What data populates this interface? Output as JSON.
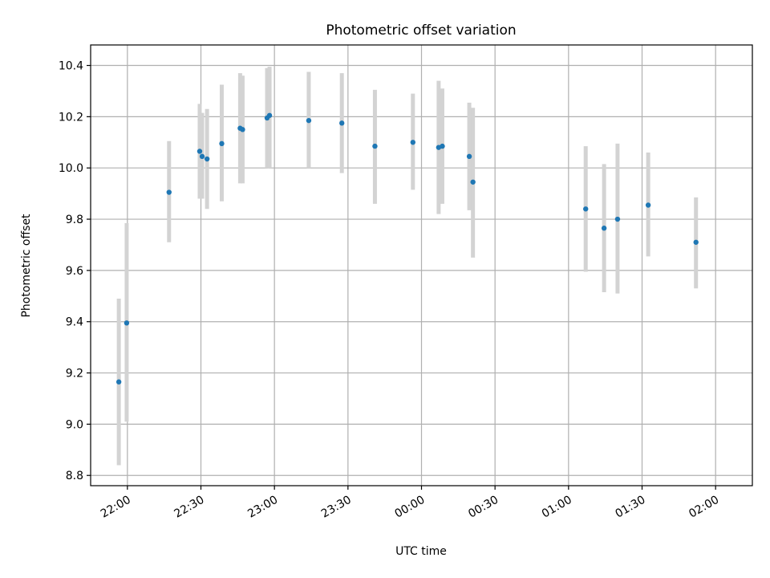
{
  "chart_data": {
    "type": "scatter",
    "title": "Photometric offset variation",
    "xlabel": "UTC time",
    "ylabel": "Photometric offset",
    "grid": true,
    "xaxis_start_time": "21:45",
    "xlim_minutes": [
      -15,
      255
    ],
    "ylim": [
      8.76,
      10.48
    ],
    "x_ticks": [
      {
        "label": "22:00",
        "minutes": 0
      },
      {
        "label": "22:30",
        "minutes": 30
      },
      {
        "label": "23:00",
        "minutes": 60
      },
      {
        "label": "23:30",
        "minutes": 90
      },
      {
        "label": "00:00",
        "minutes": 120
      },
      {
        "label": "00:30",
        "minutes": 150
      },
      {
        "label": "01:00",
        "minutes": 180
      },
      {
        "label": "01:30",
        "minutes": 210
      },
      {
        "label": "02:00",
        "minutes": 240
      }
    ],
    "y_ticks": [
      "8.8",
      "9.0",
      "9.2",
      "9.4",
      "9.6",
      "9.8",
      "10.0",
      "10.2",
      "10.4"
    ],
    "colors": {
      "point": "#1f77b4",
      "errorbar": "#d3d3d3",
      "grid": "#b0b0b0"
    },
    "series": [
      {
        "points": [
          {
            "x_min": -3.5,
            "y": 9.165,
            "lo": 8.84,
            "hi": 9.49
          },
          {
            "x_min": -0.3,
            "y": 9.395,
            "lo": 9.01,
            "hi": 9.785
          },
          {
            "x_min": 17.0,
            "y": 9.905,
            "lo": 9.71,
            "hi": 10.105
          },
          {
            "x_min": 29.5,
            "y": 10.065,
            "lo": 9.88,
            "hi": 10.25
          },
          {
            "x_min": 30.5,
            "y": 10.045,
            "lo": 9.88,
            "hi": 10.215
          },
          {
            "x_min": 32.5,
            "y": 10.035,
            "lo": 9.84,
            "hi": 10.23
          },
          {
            "x_min": 38.5,
            "y": 10.095,
            "lo": 9.87,
            "hi": 10.325
          },
          {
            "x_min": 46.0,
            "y": 10.155,
            "lo": 9.94,
            "hi": 10.37
          },
          {
            "x_min": 47.0,
            "y": 10.15,
            "lo": 9.94,
            "hi": 10.36
          },
          {
            "x_min": 57.0,
            "y": 10.195,
            "lo": 10.0,
            "hi": 10.39
          },
          {
            "x_min": 58.0,
            "y": 10.205,
            "lo": 10.0,
            "hi": 10.395
          },
          {
            "x_min": 74.0,
            "y": 10.185,
            "lo": 10.0,
            "hi": 10.375
          },
          {
            "x_min": 87.5,
            "y": 10.175,
            "lo": 9.98,
            "hi": 10.37
          },
          {
            "x_min": 101.0,
            "y": 10.085,
            "lo": 9.86,
            "hi": 10.305
          },
          {
            "x_min": 116.5,
            "y": 10.1,
            "lo": 9.915,
            "hi": 10.29
          },
          {
            "x_min": 127.0,
            "y": 10.08,
            "lo": 9.82,
            "hi": 10.34
          },
          {
            "x_min": 128.5,
            "y": 10.085,
            "lo": 9.86,
            "hi": 10.31
          },
          {
            "x_min": 139.5,
            "y": 10.045,
            "lo": 9.835,
            "hi": 10.255
          },
          {
            "x_min": 141.0,
            "y": 9.945,
            "lo": 9.65,
            "hi": 10.235
          },
          {
            "x_min": 187.0,
            "y": 9.84,
            "lo": 9.595,
            "hi": 10.085
          },
          {
            "x_min": 194.5,
            "y": 9.765,
            "lo": 9.515,
            "hi": 10.015
          },
          {
            "x_min": 200.0,
            "y": 9.8,
            "lo": 9.51,
            "hi": 10.095
          },
          {
            "x_min": 212.5,
            "y": 9.855,
            "lo": 9.655,
            "hi": 10.06
          },
          {
            "x_min": 232.0,
            "y": 9.71,
            "lo": 9.53,
            "hi": 9.885
          }
        ]
      }
    ]
  }
}
